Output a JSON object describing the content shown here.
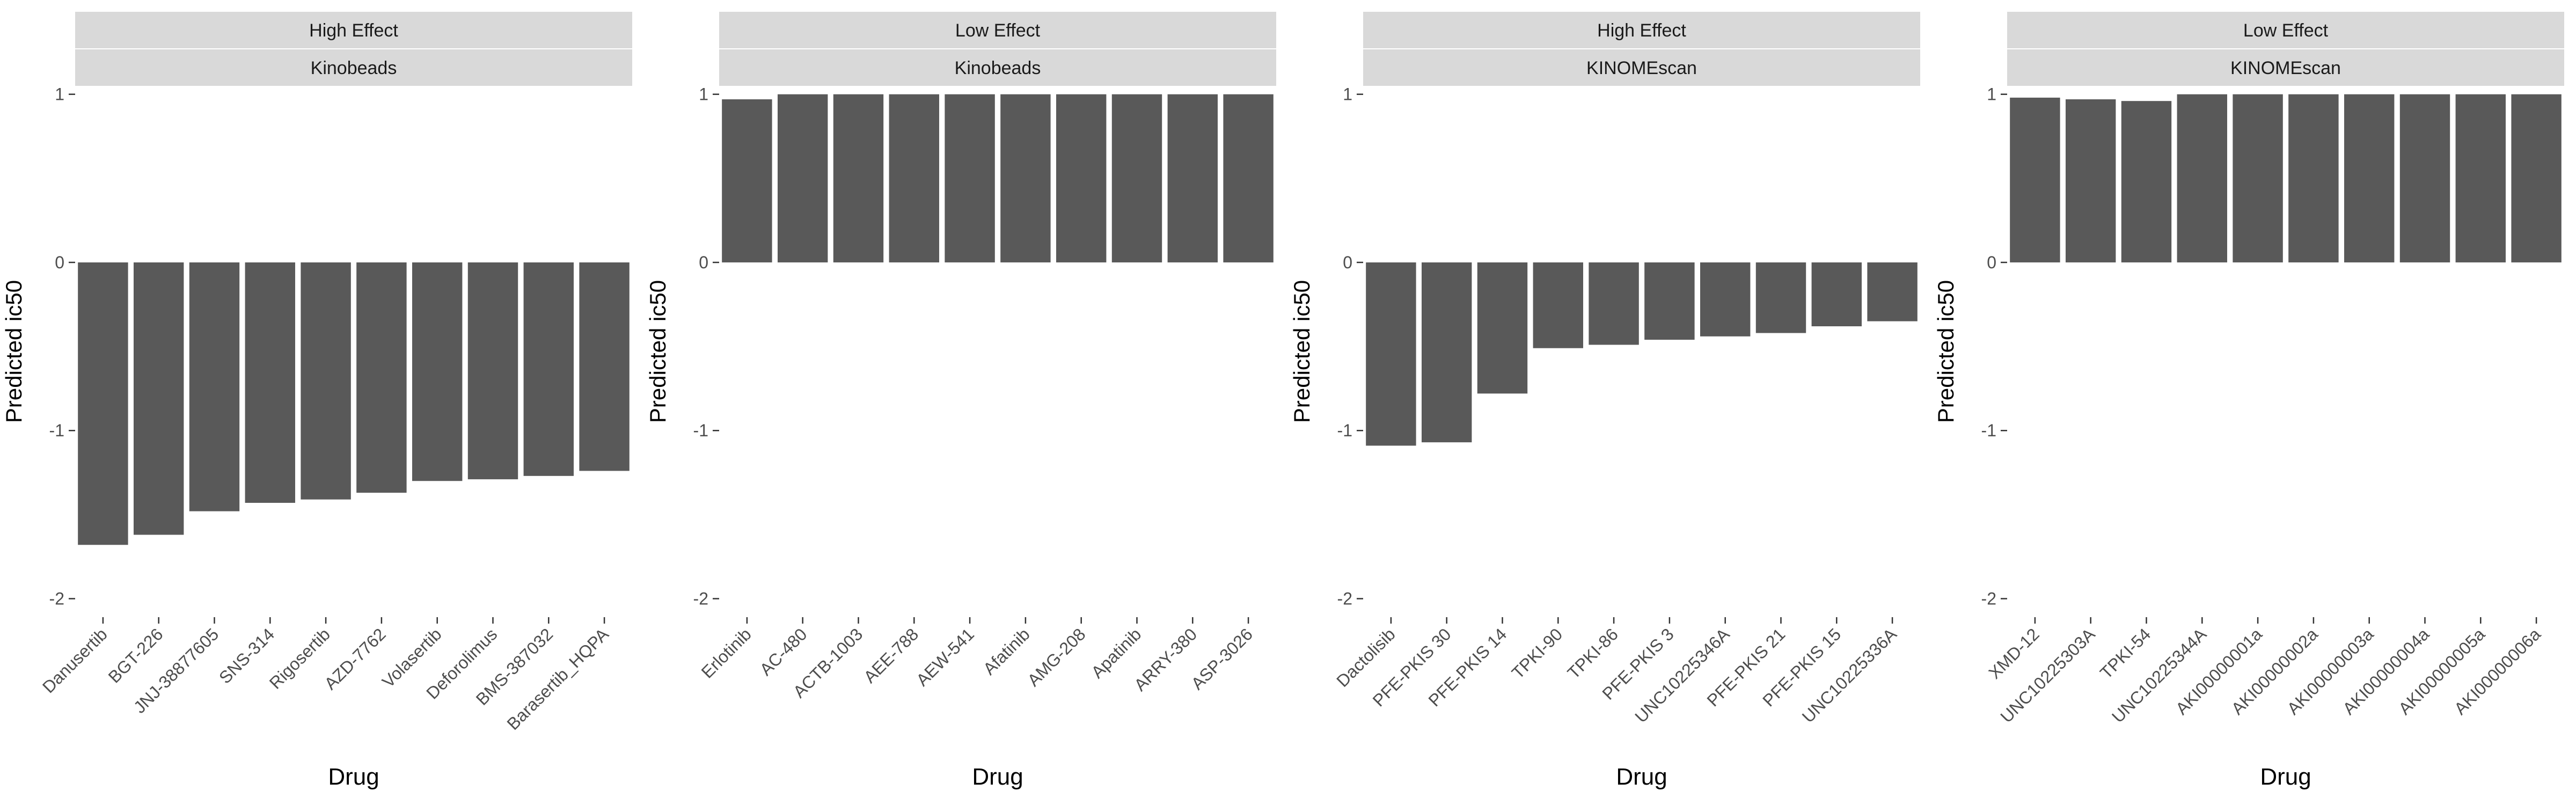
{
  "colors": {
    "bar": "#595959",
    "strip_bg": "#d9d9d9",
    "strip_text": "#1a1a1a",
    "axis_text": "#4d4d4d",
    "title_text": "#000000"
  },
  "chart_data": [
    {
      "type": "bar",
      "strip_top": "High Effect",
      "strip_bottom": "Kinobeads",
      "xlabel": "Drug",
      "ylabel": "Predicted ic50",
      "ylim": [
        -2.11,
        1.05
      ],
      "yticks": [
        1,
        0,
        -1,
        -2
      ],
      "grid": false,
      "categories": [
        "Danusertib",
        "BGT-226",
        "JNJ-38877605",
        "SNS-314",
        "Rigosertib",
        "AZD-7762",
        "Volasertib",
        "Deforolimus",
        "BMS-387032",
        "Barasertib_HQPA"
      ],
      "values": [
        -1.68,
        -1.62,
        -1.48,
        -1.43,
        -1.41,
        -1.37,
        -1.3,
        -1.29,
        -1.27,
        -1.24
      ]
    },
    {
      "type": "bar",
      "strip_top": "Low Effect",
      "strip_bottom": "Kinobeads",
      "xlabel": "Drug",
      "ylabel": "Predicted ic50",
      "ylim": [
        -2.11,
        1.05
      ],
      "yticks": [
        1,
        0,
        -1,
        -2
      ],
      "grid": false,
      "categories": [
        "Erlotinib",
        "AC-480",
        "ACTB-1003",
        "AEE-788",
        "AEW-541",
        "Afatinib",
        "AMG-208",
        "Apatinib",
        "ARRY-380",
        "ASP-3026"
      ],
      "values": [
        0.97,
        1.0,
        1.0,
        1.0,
        1.0,
        1.0,
        1.0,
        1.0,
        1.0,
        1.0
      ]
    },
    {
      "type": "bar",
      "strip_top": "High Effect",
      "strip_bottom": "KINOMEscan",
      "xlabel": "Drug",
      "ylabel": "Predicted ic50",
      "ylim": [
        -2.11,
        1.05
      ],
      "yticks": [
        1,
        0,
        -1,
        -2
      ],
      "grid": false,
      "categories": [
        "Dactolisib",
        "PFE-PKIS 30",
        "PFE-PKIS 14",
        "TPKI-90",
        "TPKI-86",
        "PFE-PKIS 3",
        "UNC10225346A",
        "PFE-PKIS 21",
        "PFE-PKIS 15",
        "UNC10225336A"
      ],
      "values": [
        -1.09,
        -1.07,
        -0.78,
        -0.51,
        -0.49,
        -0.46,
        -0.44,
        -0.42,
        -0.38,
        -0.35
      ]
    },
    {
      "type": "bar",
      "strip_top": "Low Effect",
      "strip_bottom": "KINOMEscan",
      "xlabel": "Drug",
      "ylabel": "Predicted ic50",
      "ylim": [
        -2.11,
        1.05
      ],
      "yticks": [
        1,
        0,
        -1,
        -2
      ],
      "grid": false,
      "categories": [
        "XMD-12",
        "UNC10225303A",
        "TPKI-54",
        "UNC10225344A",
        "AKI00000001a",
        "AKI00000002a",
        "AKI00000003a",
        "AKI00000004a",
        "AKI00000005a",
        "AKI00000006a"
      ],
      "values": [
        0.98,
        0.97,
        0.96,
        1.0,
        1.0,
        1.0,
        1.0,
        1.0,
        1.0,
        1.0
      ]
    }
  ]
}
